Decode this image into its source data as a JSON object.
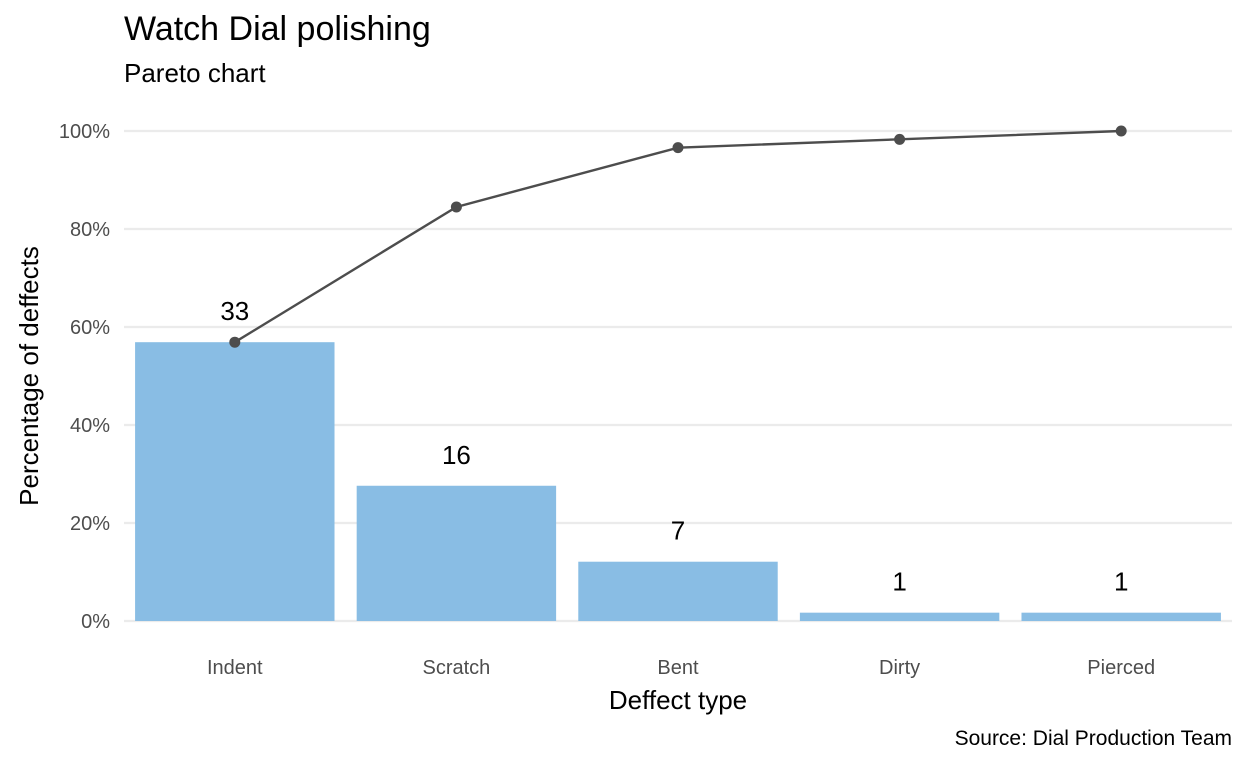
{
  "title": "Watch Dial polishing",
  "subtitle": "Pareto chart",
  "caption": "Source: Dial Production Team",
  "colors": {
    "bar": "#89bde4",
    "line": "#4d4d4d",
    "grid": "#ebebeb",
    "tick_text": "#4d4d4d"
  },
  "chart_data": {
    "type": "bar",
    "title": "Watch Dial polishing",
    "subtitle": "Pareto chart",
    "xlabel": "Deffect type",
    "ylabel": "Percentage of deffects",
    "categories": [
      "Indent",
      "Scratch",
      "Bent",
      "Dirty",
      "Pierced"
    ],
    "counts": [
      33,
      16,
      7,
      1,
      1
    ],
    "series": [
      {
        "type": "bar",
        "values": [
          56.9,
          27.6,
          12.1,
          1.7,
          1.7
        ]
      },
      {
        "type": "line",
        "values": [
          56.9,
          84.5,
          96.6,
          98.3,
          100.0
        ]
      }
    ],
    "data_labels": [
      "33",
      "16",
      "7",
      "1",
      "1"
    ],
    "yticks": [
      0,
      20,
      40,
      60,
      80,
      100
    ],
    "ytick_labels": [
      "0%",
      "20%",
      "40%",
      "60%",
      "80%",
      "100%"
    ],
    "ylim": [
      0,
      100
    ],
    "grid": true,
    "legend": "none"
  }
}
